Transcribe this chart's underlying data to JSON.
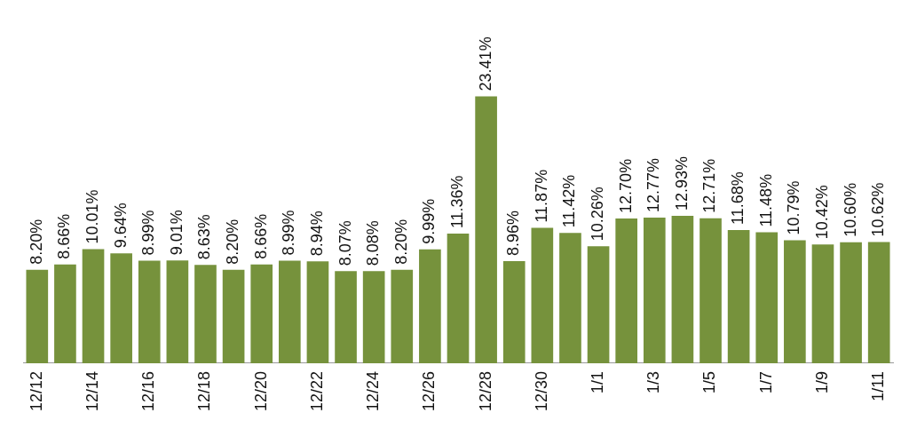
{
  "chart_data": {
    "type": "bar",
    "relative": false,
    "categories": [
      "12/12",
      null,
      "12/14",
      null,
      "12/16",
      null,
      "12/18",
      null,
      "12/20",
      null,
      "12/22",
      null,
      "12/24",
      null,
      "12/26",
      null,
      "12/28",
      null,
      "12/30",
      null,
      "1/1",
      null,
      "1/3",
      null,
      "1/5",
      null,
      "1/7",
      null,
      "1/9",
      null,
      "1/11"
    ],
    "values": [
      8.2,
      8.66,
      10.01,
      9.64,
      8.99,
      9.01,
      8.63,
      8.2,
      8.66,
      8.99,
      8.94,
      8.07,
      8.08,
      8.2,
      9.99,
      11.36,
      23.41,
      8.96,
      11.87,
      11.42,
      10.26,
      12.7,
      12.77,
      12.93,
      12.71,
      11.68,
      11.48,
      10.79,
      10.42,
      10.6,
      10.62
    ],
    "value_labels": [
      "8.20%",
      "8.66%",
      "10.01%",
      "9.64%",
      "8.99%",
      "9.01%",
      "8.63%",
      "8.20%",
      "8.66%",
      "8.99%",
      "8.94%",
      "8.07%",
      "8.08%",
      "8.20%",
      "9.99%",
      "11.36%",
      "23.41%",
      "8.96%",
      "11.87%",
      "11.42%",
      "10.26%",
      "12.70%",
      "12.77%",
      "12.93%",
      "12.71%",
      "11.68%",
      "11.48%",
      "10.79%",
      "10.42%",
      "10.60%",
      "10.62%"
    ],
    "color": "#76923c",
    "grid": false,
    "legend": false
  }
}
